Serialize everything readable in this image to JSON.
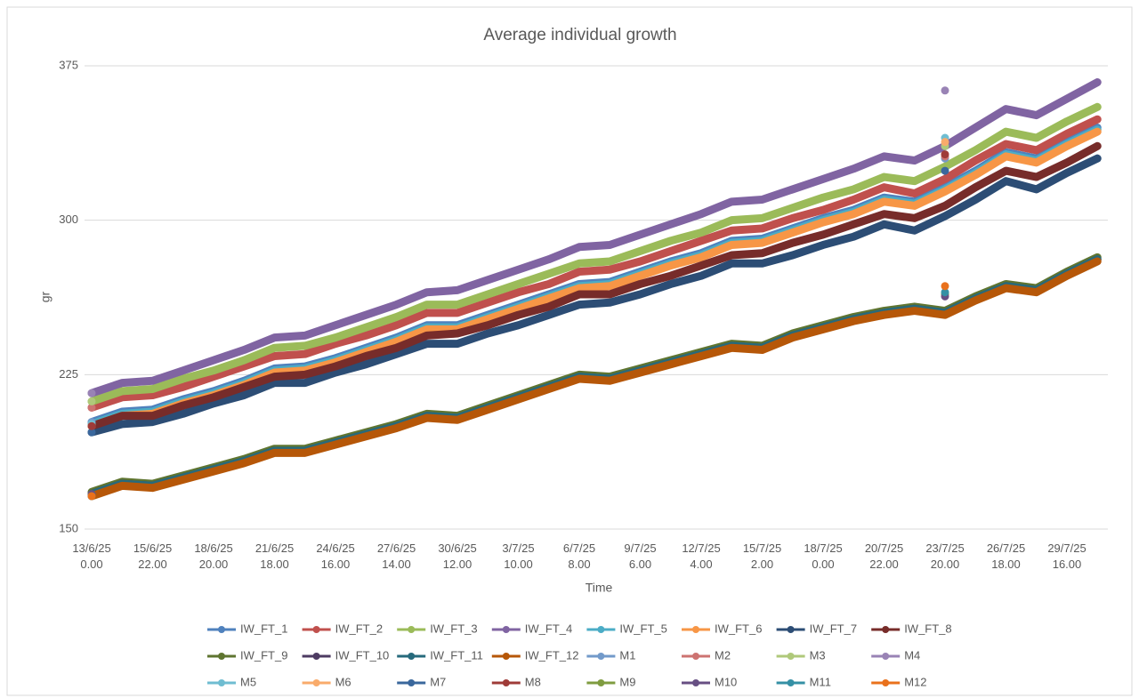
{
  "chart_data": {
    "type": "line",
    "title": "Average individual growth",
    "x_label": "Time",
    "y_label": "gr",
    "categories": [
      "13/6/25 0.00",
      null,
      "15/6/25 22.00",
      null,
      "18/6/25 20.00",
      null,
      "21/6/25 18.00",
      null,
      "24/6/25 16.00",
      null,
      "27/6/25 14.00",
      null,
      "30/6/25 12.00",
      null,
      "3/7/25 10.00",
      null,
      "6/7/25 8.00",
      null,
      "9/7/25 6.00",
      null,
      "12/7/25 4.00",
      null,
      "15/7/25 2.00",
      null,
      "18/7/25 0.00",
      null,
      "20/7/25 22.00",
      null,
      "23/7/25 20.00",
      null,
      "26/7/25 18.00",
      null,
      "29/7/25 16.00",
      null
    ],
    "ylim": [
      150,
      375
    ],
    "yticks": [
      150,
      225,
      300,
      375
    ],
    "grid": true,
    "series": [
      {
        "name": "IW_FT_1",
        "color": "#4f81bd",
        "mode": "line",
        "values": [
          202,
          207,
          208,
          213,
          217,
          222,
          228,
          229,
          233,
          238,
          243,
          249,
          249,
          254,
          259,
          264,
          269,
          270,
          275,
          280,
          284,
          290,
          291,
          296,
          301,
          305,
          311,
          309,
          316,
          324,
          333,
          330,
          338,
          345
        ]
      },
      {
        "name": "IW_FT_2",
        "color": "#c0504d",
        "mode": "line",
        "values": [
          209,
          214,
          215,
          219,
          224,
          229,
          234,
          235,
          240,
          244,
          249,
          255,
          255,
          260,
          265,
          269,
          275,
          276,
          280,
          285,
          290,
          295,
          296,
          301,
          305,
          310,
          316,
          313,
          320,
          329,
          337,
          334,
          342,
          349
        ]
      },
      {
        "name": "IW_FT_3",
        "color": "#9bbb59",
        "mode": "line",
        "values": [
          212,
          217,
          218,
          223,
          227,
          232,
          238,
          239,
          243,
          248,
          253,
          259,
          259,
          264,
          269,
          274,
          279,
          280,
          285,
          290,
          294,
          300,
          301,
          306,
          311,
          315,
          321,
          319,
          326,
          334,
          343,
          340,
          348,
          355
        ]
      },
      {
        "name": "IW_FT_4",
        "color": "#8064a2",
        "mode": "line",
        "values": [
          216,
          221,
          222,
          227,
          232,
          237,
          243,
          244,
          249,
          254,
          259,
          265,
          266,
          271,
          276,
          281,
          287,
          288,
          293,
          298,
          303,
          309,
          310,
          315,
          320,
          325,
          331,
          329,
          336,
          345,
          354,
          351,
          359,
          367
        ]
      },
      {
        "name": "IW_FT_5",
        "color": "#4bacc6",
        "mode": "line",
        "values": [
          201,
          206,
          207,
          212,
          216,
          221,
          227,
          228,
          232,
          237,
          242,
          248,
          248,
          253,
          258,
          263,
          268,
          269,
          274,
          279,
          283,
          289,
          290,
          295,
          300,
          304,
          310,
          308,
          315,
          323,
          332,
          329,
          337,
          344
        ]
      },
      {
        "name": "IW_FT_6",
        "color": "#f79646",
        "mode": "line",
        "values": [
          200,
          205,
          206,
          211,
          215,
          220,
          226,
          227,
          231,
          236,
          241,
          247,
          247,
          252,
          257,
          262,
          267,
          268,
          273,
          278,
          282,
          288,
          289,
          294,
          299,
          303,
          309,
          307,
          314,
          322,
          331,
          328,
          336,
          343
        ]
      },
      {
        "name": "IW_FT_7",
        "color": "#2c4d75",
        "mode": "line",
        "values": [
          197,
          201,
          202,
          206,
          211,
          215,
          221,
          221,
          226,
          230,
          235,
          240,
          240,
          245,
          249,
          254,
          259,
          260,
          264,
          269,
          273,
          279,
          279,
          283,
          288,
          292,
          298,
          295,
          302,
          310,
          319,
          315,
          323,
          330
        ]
      },
      {
        "name": "IW_FT_8",
        "color": "#772c2a",
        "mode": "line",
        "values": [
          200,
          205,
          205,
          210,
          214,
          219,
          224,
          225,
          229,
          234,
          238,
          244,
          245,
          249,
          254,
          258,
          264,
          264,
          269,
          273,
          278,
          283,
          284,
          289,
          293,
          298,
          303,
          301,
          307,
          316,
          324,
          321,
          328,
          336
        ]
      },
      {
        "name": "IW_FT_9",
        "color": "#5f7530",
        "mode": "line",
        "values": [
          168,
          173,
          172,
          176,
          180,
          184,
          189,
          189,
          193,
          197,
          201,
          206,
          205,
          210,
          215,
          220,
          225,
          224,
          228,
          232,
          236,
          240,
          239,
          245,
          249,
          253,
          256,
          258,
          256,
          263,
          269,
          267,
          275,
          282
        ]
      },
      {
        "name": "IW_FT_10",
        "color": "#4d3b62",
        "mode": "line",
        "values": [
          167,
          172,
          171,
          175,
          179,
          183,
          188,
          188,
          192,
          196,
          200,
          205,
          204,
          209,
          214,
          219,
          224,
          223,
          227,
          231,
          235,
          239,
          238,
          244,
          248,
          252,
          255,
          257,
          255,
          262,
          268,
          266,
          274,
          281
        ]
      },
      {
        "name": "IW_FT_11",
        "color": "#276a7c",
        "mode": "line",
        "values": [
          167,
          172,
          171,
          175,
          179,
          183,
          188,
          188,
          192,
          196,
          200,
          205,
          204,
          209,
          214,
          219,
          224,
          223,
          227,
          231,
          235,
          239,
          238,
          244,
          248,
          252,
          255,
          257,
          255,
          262,
          268,
          266,
          274,
          281
        ]
      },
      {
        "name": "IW_FT_12",
        "color": "#b65708",
        "mode": "line",
        "values": [
          166,
          171,
          170,
          174,
          178,
          182,
          187,
          187,
          191,
          195,
          199,
          204,
          203,
          208,
          213,
          218,
          223,
          222,
          226,
          230,
          234,
          238,
          237,
          243,
          247,
          251,
          254,
          256,
          254,
          261,
          267,
          265,
          273,
          280
        ]
      },
      {
        "name": "M1",
        "color": "#729aca",
        "mode": "markers",
        "values": [
          202,
          null,
          null,
          null,
          null,
          null,
          null,
          null,
          null,
          null,
          null,
          null,
          null,
          null,
          null,
          null,
          null,
          null,
          null,
          null,
          null,
          null,
          null,
          null,
          null,
          null,
          null,
          null,
          330,
          null,
          null,
          null,
          null,
          null
        ]
      },
      {
        "name": "M2",
        "color": "#cd7371",
        "mode": "markers",
        "values": [
          209,
          null,
          null,
          null,
          null,
          null,
          null,
          null,
          null,
          null,
          null,
          null,
          null,
          null,
          null,
          null,
          null,
          null,
          null,
          null,
          null,
          null,
          null,
          null,
          null,
          null,
          null,
          null,
          331,
          null,
          null,
          null,
          null,
          null
        ]
      },
      {
        "name": "M3",
        "color": "#afc97a",
        "mode": "markers",
        "values": [
          212,
          null,
          null,
          null,
          null,
          null,
          null,
          null,
          null,
          null,
          null,
          null,
          null,
          null,
          null,
          null,
          null,
          null,
          null,
          null,
          null,
          null,
          null,
          null,
          null,
          null,
          null,
          null,
          336,
          null,
          null,
          null,
          null,
          null
        ]
      },
      {
        "name": "M4",
        "color": "#9983b5",
        "mode": "markers",
        "values": [
          216,
          null,
          null,
          null,
          null,
          null,
          null,
          null,
          null,
          null,
          null,
          null,
          null,
          null,
          null,
          null,
          null,
          null,
          null,
          null,
          null,
          null,
          null,
          null,
          null,
          null,
          null,
          null,
          363,
          null,
          null,
          null,
          null,
          null
        ]
      },
      {
        "name": "M5",
        "color": "#6fbdd1",
        "mode": "markers",
        "values": [
          201,
          null,
          null,
          null,
          null,
          null,
          null,
          null,
          null,
          null,
          null,
          null,
          null,
          null,
          null,
          null,
          null,
          null,
          null,
          null,
          null,
          null,
          null,
          null,
          null,
          null,
          null,
          null,
          340,
          null,
          null,
          null,
          null,
          null
        ]
      },
      {
        "name": "M6",
        "color": "#f9ab6b",
        "mode": "markers",
        "values": [
          200,
          null,
          null,
          null,
          null,
          null,
          null,
          null,
          null,
          null,
          null,
          null,
          null,
          null,
          null,
          null,
          null,
          null,
          null,
          null,
          null,
          null,
          null,
          null,
          null,
          null,
          null,
          null,
          338,
          null,
          null,
          null,
          null,
          null
        ]
      },
      {
        "name": "M7",
        "color": "#3a679c",
        "mode": "markers",
        "values": [
          197,
          null,
          null,
          null,
          null,
          null,
          null,
          null,
          null,
          null,
          null,
          null,
          null,
          null,
          null,
          null,
          null,
          null,
          null,
          null,
          null,
          null,
          null,
          null,
          null,
          null,
          null,
          null,
          324,
          null,
          null,
          null,
          null,
          null
        ]
      },
      {
        "name": "M8",
        "color": "#9f3b38",
        "mode": "markers",
        "values": [
          200,
          null,
          null,
          null,
          null,
          null,
          null,
          null,
          null,
          null,
          null,
          null,
          null,
          null,
          null,
          null,
          null,
          null,
          null,
          null,
          null,
          null,
          null,
          null,
          null,
          null,
          null,
          null,
          332,
          null,
          null,
          null,
          null,
          null
        ]
      },
      {
        "name": "M9",
        "color": "#7f9c40",
        "mode": "markers",
        "values": [
          167,
          null,
          null,
          null,
          null,
          null,
          null,
          null,
          null,
          null,
          null,
          null,
          null,
          null,
          null,
          null,
          null,
          null,
          null,
          null,
          null,
          null,
          null,
          null,
          null,
          null,
          null,
          null,
          264,
          null,
          null,
          null,
          null,
          null
        ]
      },
      {
        "name": "M10",
        "color": "#674f83",
        "mode": "markers",
        "values": [
          167,
          null,
          null,
          null,
          null,
          null,
          null,
          null,
          null,
          null,
          null,
          null,
          null,
          null,
          null,
          null,
          null,
          null,
          null,
          null,
          null,
          null,
          null,
          null,
          null,
          null,
          null,
          null,
          263,
          null,
          null,
          null,
          null,
          null
        ]
      },
      {
        "name": "M11",
        "color": "#3590a5",
        "mode": "markers",
        "values": [
          166,
          null,
          null,
          null,
          null,
          null,
          null,
          null,
          null,
          null,
          null,
          null,
          null,
          null,
          null,
          null,
          null,
          null,
          null,
          null,
          null,
          null,
          null,
          null,
          null,
          null,
          null,
          null,
          265,
          null,
          null,
          null,
          null,
          null
        ]
      },
      {
        "name": "M12",
        "color": "#e9711c",
        "mode": "markers",
        "values": [
          166,
          null,
          null,
          null,
          null,
          null,
          null,
          null,
          null,
          null,
          null,
          null,
          null,
          null,
          null,
          null,
          null,
          null,
          null,
          null,
          null,
          null,
          null,
          null,
          null,
          null,
          null,
          null,
          268,
          null,
          null,
          null,
          null,
          null
        ]
      }
    ]
  }
}
